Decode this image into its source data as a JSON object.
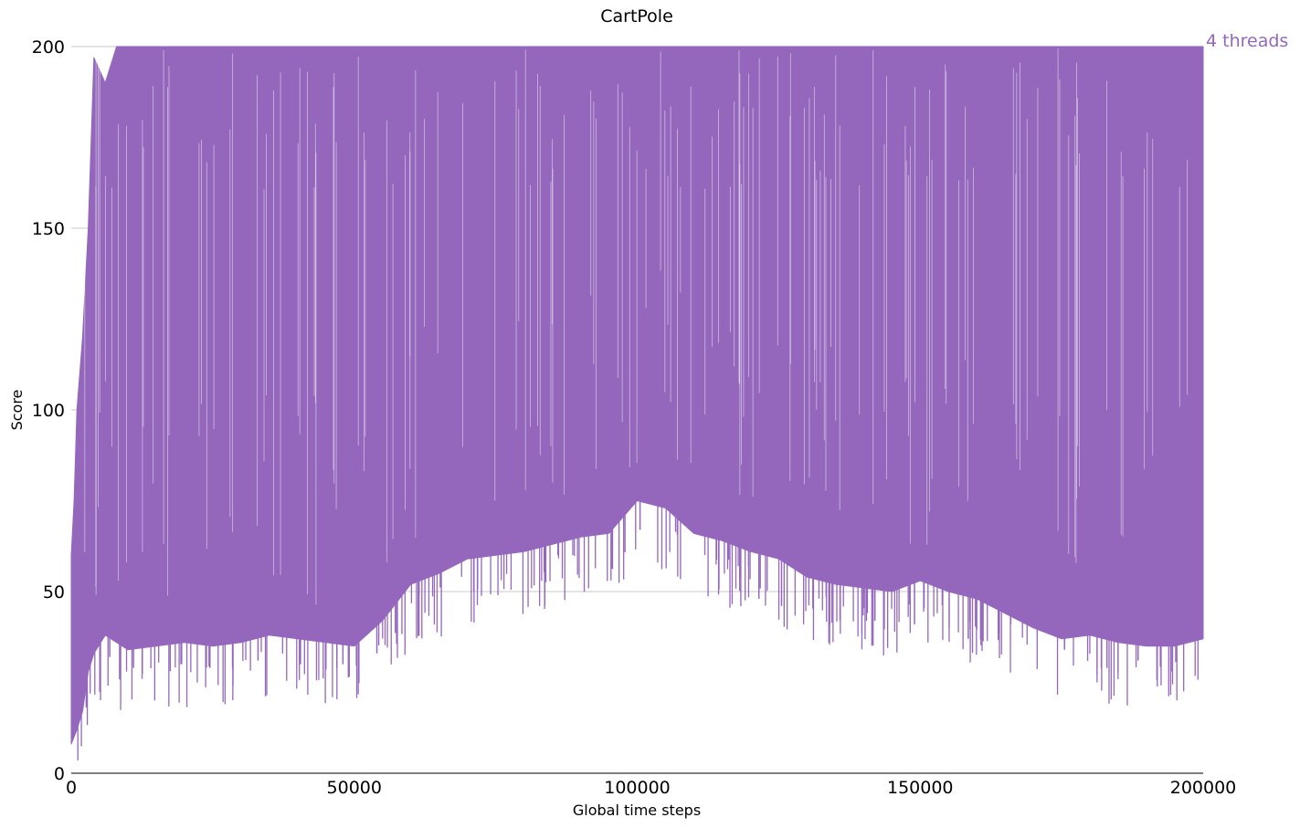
{
  "chart_data": {
    "type": "line",
    "title": "CartPole",
    "xlabel": "Global time steps",
    "ylabel": "Score",
    "xlim": [
      0,
      200000
    ],
    "ylim": [
      0,
      200
    ],
    "x_ticks": [
      "0",
      "50000",
      "100000",
      "150000",
      "200000"
    ],
    "y_ticks": [
      "0",
      "50",
      "100",
      "150",
      "200"
    ],
    "grid": "horizontal",
    "legend_placement": "right-end-of-line",
    "series": [
      {
        "name": "4 threads",
        "color": "#9467bd",
        "envelope": {
          "x": [
            0,
            500,
            1000,
            2000,
            3000,
            4000,
            6000,
            8000,
            10000,
            15000,
            20000,
            25000,
            30000,
            35000,
            40000,
            45000,
            50000,
            55000,
            60000,
            65000,
            70000,
            75000,
            80000,
            85000,
            90000,
            95000,
            100000,
            105000,
            110000,
            115000,
            120000,
            125000,
            130000,
            135000,
            140000,
            145000,
            150000,
            155000,
            160000,
            165000,
            170000,
            175000,
            180000,
            185000,
            190000,
            195000,
            200000
          ],
          "low": [
            8,
            10,
            12,
            17,
            28,
            33,
            38,
            36,
            34,
            35,
            36,
            35,
            36,
            38,
            37,
            36,
            35,
            42,
            52,
            55,
            59,
            60,
            61,
            63,
            65,
            66,
            75,
            73,
            66,
            64,
            61,
            59,
            54,
            52,
            51,
            50,
            53,
            50,
            48,
            44,
            40,
            37,
            38,
            36,
            35,
            35,
            37
          ],
          "high": [
            60,
            75,
            100,
            120,
            150,
            197,
            190,
            200,
            200,
            200,
            200,
            200,
            200,
            200,
            200,
            200,
            200,
            200,
            200,
            200,
            200,
            200,
            200,
            200,
            200,
            200,
            200,
            200,
            200,
            200,
            200,
            200,
            200,
            200,
            200,
            200,
            200,
            200,
            200,
            200,
            200,
            200,
            200,
            200,
            200,
            200,
            200
          ]
        },
        "dips": [
          {
            "x": 3300,
            "y": 30
          },
          {
            "x": 6800,
            "y": 32
          },
          {
            "x": 11000,
            "y": 29
          },
          {
            "x": 19500,
            "y": 30
          },
          {
            "x": 24500,
            "y": 29
          },
          {
            "x": 28500,
            "y": 29
          },
          {
            "x": 33000,
            "y": 31
          },
          {
            "x": 40500,
            "y": 30
          },
          {
            "x": 48000,
            "y": 30
          },
          {
            "x": 54000,
            "y": 33
          },
          {
            "x": 57000,
            "y": 48
          },
          {
            "x": 75000,
            "y": 63
          },
          {
            "x": 86000,
            "y": 60
          },
          {
            "x": 100500,
            "y": 67
          },
          {
            "x": 121500,
            "y": 48
          },
          {
            "x": 125500,
            "y": 46
          },
          {
            "x": 134000,
            "y": 41
          },
          {
            "x": 142000,
            "y": 42
          },
          {
            "x": 149000,
            "y": 41
          },
          {
            "x": 158500,
            "y": 37
          },
          {
            "x": 166000,
            "y": 41
          },
          {
            "x": 175500,
            "y": 34
          },
          {
            "x": 183000,
            "y": 29
          },
          {
            "x": 188500,
            "y": 31
          },
          {
            "x": 194500,
            "y": 28
          },
          {
            "x": 199800,
            "y": 38
          }
        ]
      }
    ]
  }
}
